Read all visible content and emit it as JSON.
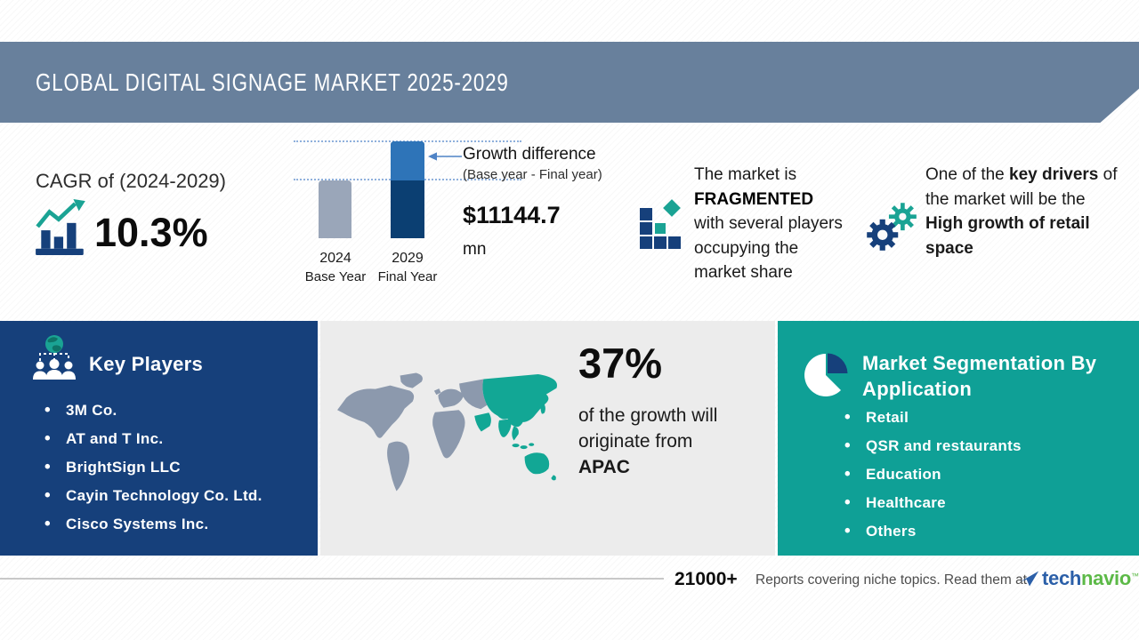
{
  "header": {
    "title": "GLOBAL DIGITAL SIGNAGE MARKET 2025-2029"
  },
  "cagr": {
    "label": "CAGR of (2024-2029)",
    "value": "10.3%"
  },
  "growth": {
    "bar1_year": "2024",
    "bar1_label": "Base Year",
    "bar2_year": "2029",
    "bar2_label": "Final Year",
    "title": "Growth difference",
    "subtitle": "(Base year - Final year)",
    "amount": "$11144.7",
    "unit": "mn"
  },
  "chart_data": {
    "type": "bar",
    "categories": [
      "2024 Base Year",
      "2029 Final Year"
    ],
    "values_relative": [
      0.6,
      1.0
    ],
    "growth_difference_mn": 11144.7,
    "cagr_percent": 10.3,
    "title": "Growth difference (Base year - Final year)",
    "grid": "dotted reference lines at both bar tops",
    "legend_position": "none"
  },
  "fragmented": {
    "pre": "The market is",
    "highlight": "FRAGMENTED",
    "post": "with several players occupying the market share"
  },
  "driver": {
    "pre": "One of the ",
    "bold1": "key drivers",
    "mid": " of the market will be the ",
    "bold2": "High growth of retail space"
  },
  "key_players": {
    "title": "Key Players",
    "items": [
      "3M Co.",
      "AT and T Inc.",
      "BrightSign LLC",
      "Cayin Technology Co. Ltd.",
      "Cisco Systems Inc."
    ]
  },
  "regional": {
    "percent": "37%",
    "line1": "of the growth will",
    "line2": "originate from",
    "region": "APAC"
  },
  "segmentation": {
    "title": "Market Segmentation By Application",
    "items": [
      "Retail",
      "QSR and restaurants",
      "Education",
      "Healthcare",
      "Others"
    ]
  },
  "footer": {
    "count": "21000+",
    "text": "Reports covering niche topics. Read them at",
    "logo_part1": "tech",
    "logo_part2": "navio",
    "tm": "™"
  },
  "colors": {
    "band": "#68809C",
    "navy": "#16407B",
    "teal_panel": "#0FA096",
    "icon_teal": "#1AA394",
    "bar_gray": "#9AA6B9",
    "bar_light_blue": "#2E74B8",
    "bar_dark_blue": "#0B3F72",
    "map_gray": "#8C99AD",
    "map_teal": "#12A795",
    "logo_blue": "#2B5FA8",
    "logo_green": "#5CB947"
  }
}
